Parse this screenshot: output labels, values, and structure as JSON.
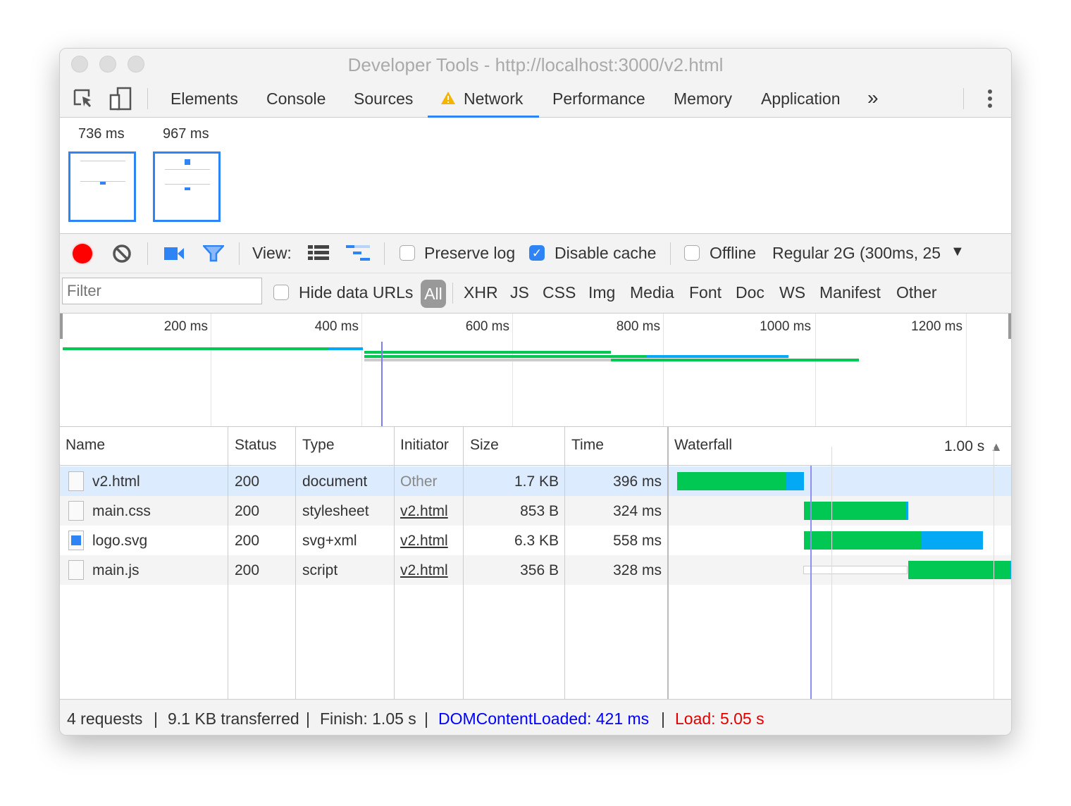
{
  "window": {
    "title": "Developer Tools - http://localhost:3000/v2.html"
  },
  "tabs": [
    {
      "label": "Elements"
    },
    {
      "label": "Console"
    },
    {
      "label": "Sources"
    },
    {
      "label": "Network",
      "active": true,
      "icon": "warning-icon"
    },
    {
      "label": "Performance"
    },
    {
      "label": "Memory"
    },
    {
      "label": "Application"
    }
  ],
  "filmstrip": [
    {
      "label": "736 ms"
    },
    {
      "label": "967 ms"
    }
  ],
  "toolbar": {
    "view_label": "View:",
    "preserve_log": {
      "label": "Preserve log",
      "checked": false
    },
    "disable_cache": {
      "label": "Disable cache",
      "checked": true
    },
    "offline": {
      "label": "Offline",
      "checked": false
    },
    "throttle": "Regular 2G (300ms, 25"
  },
  "filterbar": {
    "placeholder": "Filter",
    "hide_data_urls": {
      "label": "Hide data URLs",
      "checked": false
    },
    "types": [
      "All",
      "XHR",
      "JS",
      "CSS",
      "Img",
      "Media",
      "Font",
      "Doc",
      "WS",
      "Manifest",
      "Other"
    ],
    "active": "All"
  },
  "overview": {
    "ticks": [
      "200 ms",
      "400 ms",
      "600 ms",
      "800 ms",
      "1000 ms",
      "1200 ms"
    ]
  },
  "table": {
    "columns": [
      "Name",
      "Status",
      "Type",
      "Initiator",
      "Size",
      "Time",
      "Waterfall"
    ],
    "waterfall_scale": "1.00 s",
    "rows": [
      {
        "name": "v2.html",
        "status": "200",
        "type": "document",
        "initiator": "Other",
        "size": "1.7 KB",
        "time": "396 ms",
        "selected": true
      },
      {
        "name": "main.css",
        "status": "200",
        "type": "stylesheet",
        "initiator": "v2.html",
        "size": "853 B",
        "time": "324 ms"
      },
      {
        "name": "logo.svg",
        "status": "200",
        "type": "svg+xml",
        "initiator": "v2.html",
        "size": "6.3 KB",
        "time": "558 ms"
      },
      {
        "name": "main.js",
        "status": "200",
        "type": "script",
        "initiator": "v2.html",
        "size": "356 B",
        "time": "328 ms"
      }
    ]
  },
  "footer": {
    "requests": "4 requests",
    "transferred": "9.1 KB transferred",
    "finish": "Finish: 1.05 s",
    "dcl": "DOMContentLoaded: 421 ms",
    "load": "Load: 5.05 s"
  },
  "colors": {
    "accent": "#2f84f5",
    "waiting": "#00c853",
    "download": "#03a9f4",
    "dcl": "#0000ff",
    "load": "#e00000",
    "record": "#ff0000"
  }
}
